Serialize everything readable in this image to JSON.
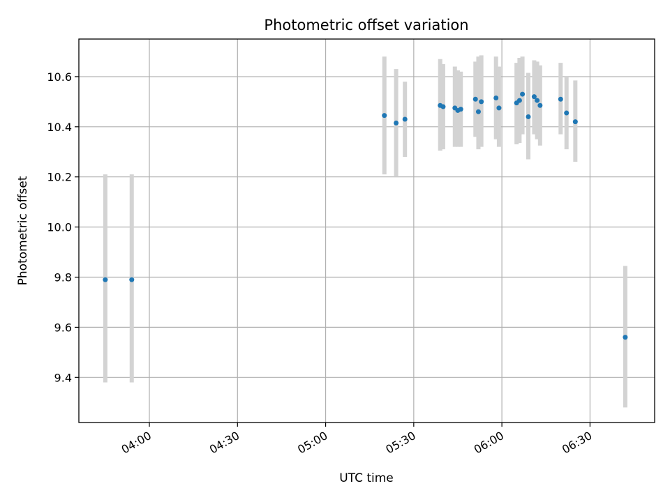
{
  "chart_data": {
    "type": "scatter",
    "title": "Photometric offset variation",
    "xlabel": "UTC time",
    "ylabel": "Photometric offset",
    "x_is_time": true,
    "xlim": [
      "03:36",
      "06:52"
    ],
    "ylim": [
      9.22,
      10.75
    ],
    "x_ticks": [
      "04:00",
      "04:30",
      "05:00",
      "05:30",
      "06:00",
      "06:30"
    ],
    "y_ticks": [
      9.4,
      9.6,
      9.8,
      10.0,
      10.2,
      10.4,
      10.6
    ],
    "y_tick_labels": [
      "9.4",
      "9.6",
      "9.8",
      "10.0",
      "10.2",
      "10.4",
      "10.6"
    ],
    "grid": true,
    "legend": "none",
    "marker_color": "#1f77b4",
    "errorbar_color": "#d3d3d3",
    "points": [
      {
        "t": "03:45",
        "y": 9.79,
        "lo": 9.38,
        "hi": 10.21
      },
      {
        "t": "03:54",
        "y": 9.79,
        "lo": 9.38,
        "hi": 10.21
      },
      {
        "t": "05:20",
        "y": 10.445,
        "lo": 10.21,
        "hi": 10.68
      },
      {
        "t": "05:24",
        "y": 10.415,
        "lo": 10.2,
        "hi": 10.63
      },
      {
        "t": "05:27",
        "y": 10.43,
        "lo": 10.28,
        "hi": 10.58
      },
      {
        "t": "05:39",
        "y": 10.485,
        "lo": 10.305,
        "hi": 10.67
      },
      {
        "t": "05:40",
        "y": 10.48,
        "lo": 10.31,
        "hi": 10.65
      },
      {
        "t": "05:44",
        "y": 10.475,
        "lo": 10.32,
        "hi": 10.64
      },
      {
        "t": "05:45",
        "y": 10.465,
        "lo": 10.32,
        "hi": 10.625
      },
      {
        "t": "05:46",
        "y": 10.47,
        "lo": 10.32,
        "hi": 10.62
      },
      {
        "t": "05:51",
        "y": 10.51,
        "lo": 10.36,
        "hi": 10.66
      },
      {
        "t": "05:52",
        "y": 10.46,
        "lo": 10.31,
        "hi": 10.68
      },
      {
        "t": "05:53",
        "y": 10.5,
        "lo": 10.32,
        "hi": 10.685
      },
      {
        "t": "05:58",
        "y": 10.515,
        "lo": 10.35,
        "hi": 10.68
      },
      {
        "t": "05:59",
        "y": 10.475,
        "lo": 10.32,
        "hi": 10.64
      },
      {
        "t": "06:05",
        "y": 10.495,
        "lo": 10.33,
        "hi": 10.655
      },
      {
        "t": "06:06",
        "y": 10.505,
        "lo": 10.335,
        "hi": 10.675
      },
      {
        "t": "06:07",
        "y": 10.53,
        "lo": 10.37,
        "hi": 10.68
      },
      {
        "t": "06:09",
        "y": 10.44,
        "lo": 10.27,
        "hi": 10.615
      },
      {
        "t": "06:11",
        "y": 10.52,
        "lo": 10.37,
        "hi": 10.665
      },
      {
        "t": "06:12",
        "y": 10.505,
        "lo": 10.35,
        "hi": 10.66
      },
      {
        "t": "06:13",
        "y": 10.485,
        "lo": 10.325,
        "hi": 10.645
      },
      {
        "t": "06:20",
        "y": 10.51,
        "lo": 10.37,
        "hi": 10.655
      },
      {
        "t": "06:22",
        "y": 10.455,
        "lo": 10.31,
        "hi": 10.6
      },
      {
        "t": "06:25",
        "y": 10.42,
        "lo": 10.26,
        "hi": 10.585
      },
      {
        "t": "06:42",
        "y": 9.56,
        "lo": 9.28,
        "hi": 9.845
      }
    ]
  }
}
